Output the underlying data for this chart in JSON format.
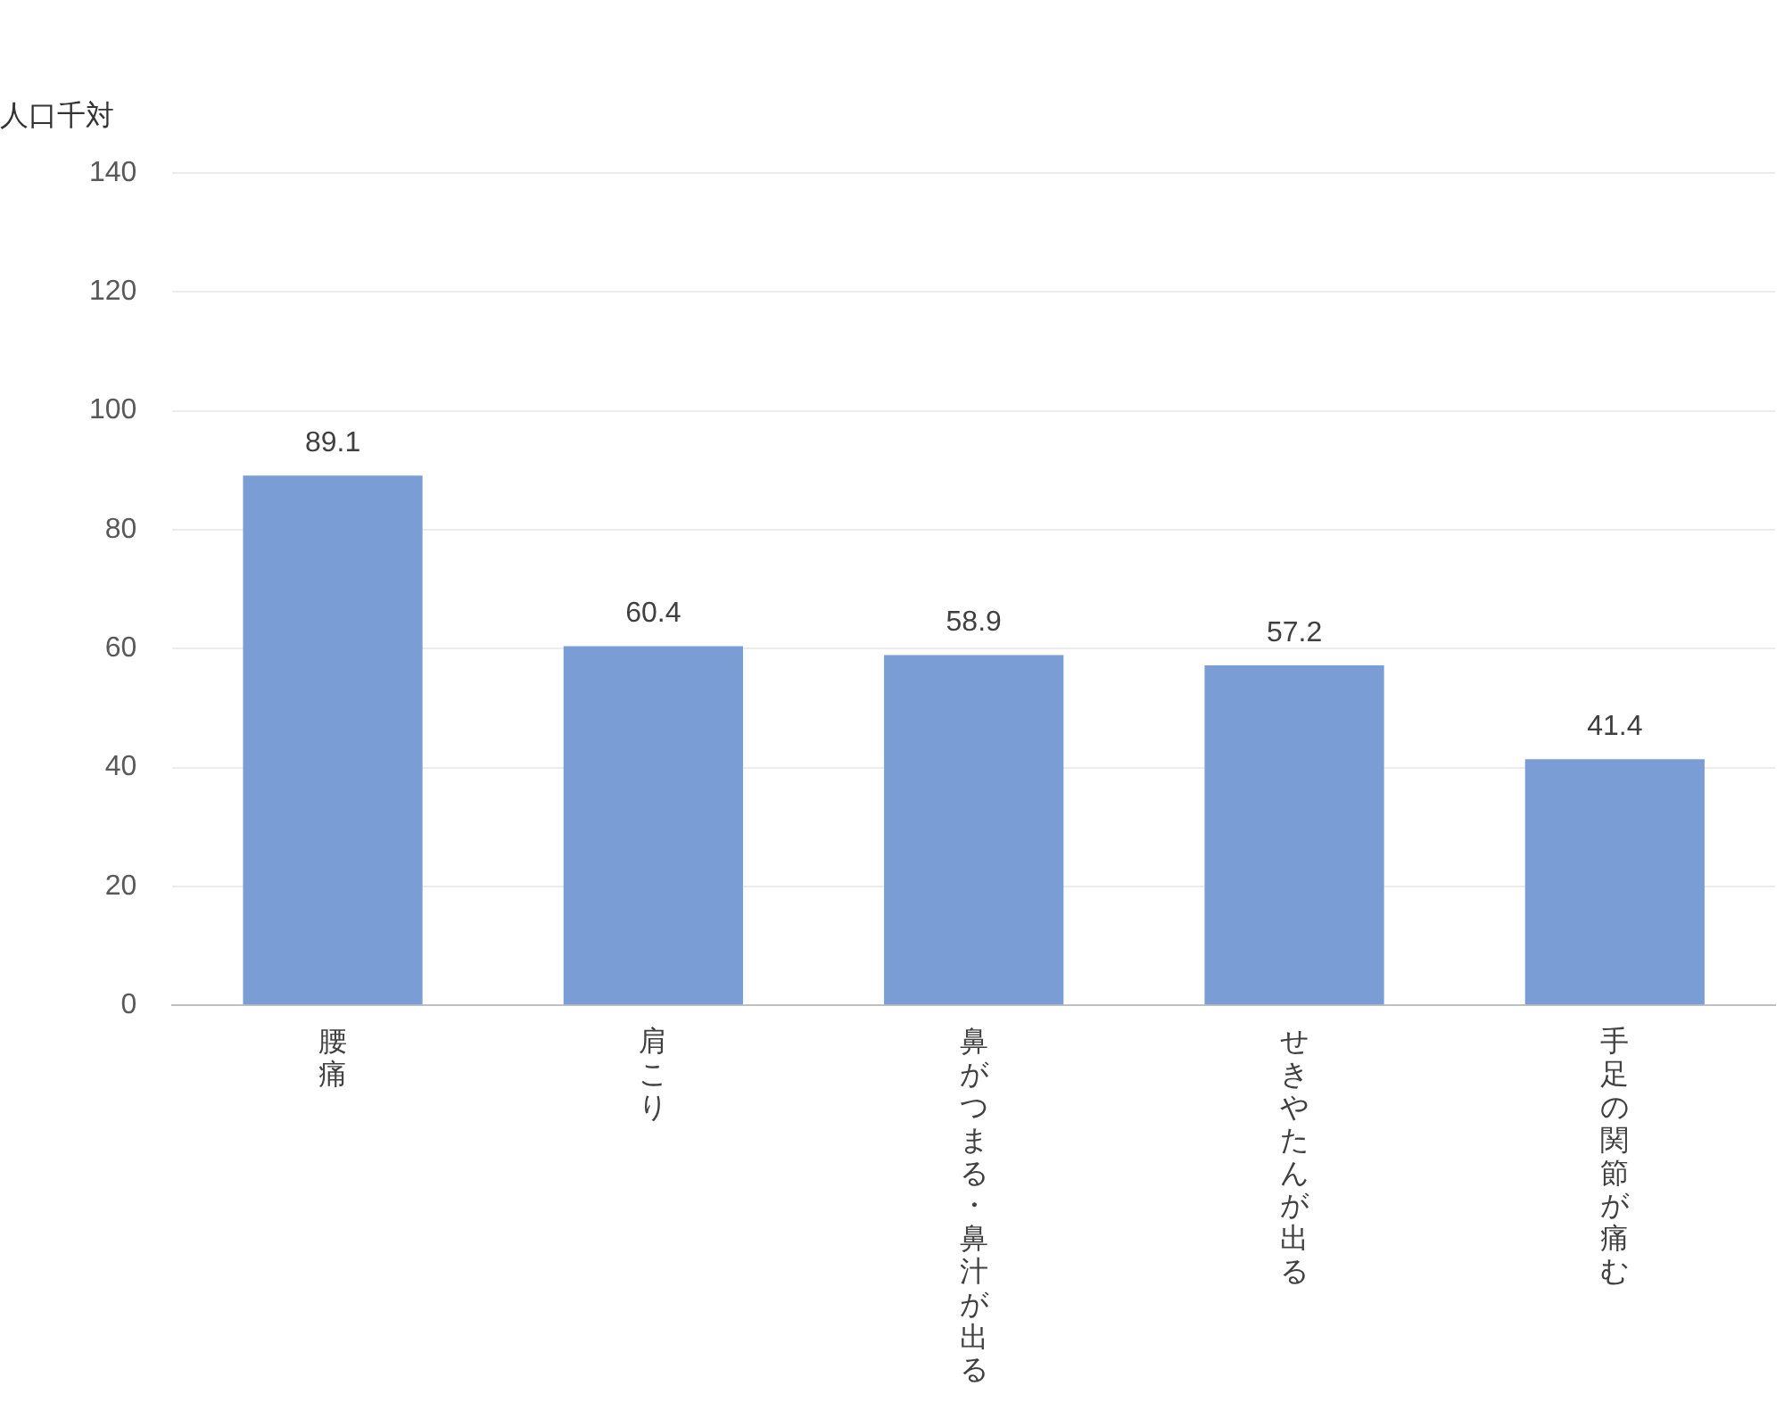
{
  "chart_data": {
    "type": "bar",
    "ylabel": "人口千対",
    "categories": [
      "腰痛",
      "肩こり",
      "鼻がつまる・鼻汁が出る",
      "せきやたんが出る",
      "手足の関節が痛む"
    ],
    "values": [
      89.1,
      60.4,
      58.9,
      57.2,
      41.4
    ],
    "color": "#7b9dd6",
    "ylim": [
      0,
      140
    ],
    "yticks": [
      0,
      20,
      40,
      60,
      80,
      100,
      120,
      140
    ],
    "grid": "y",
    "data_labels": true,
    "legend": false
  }
}
